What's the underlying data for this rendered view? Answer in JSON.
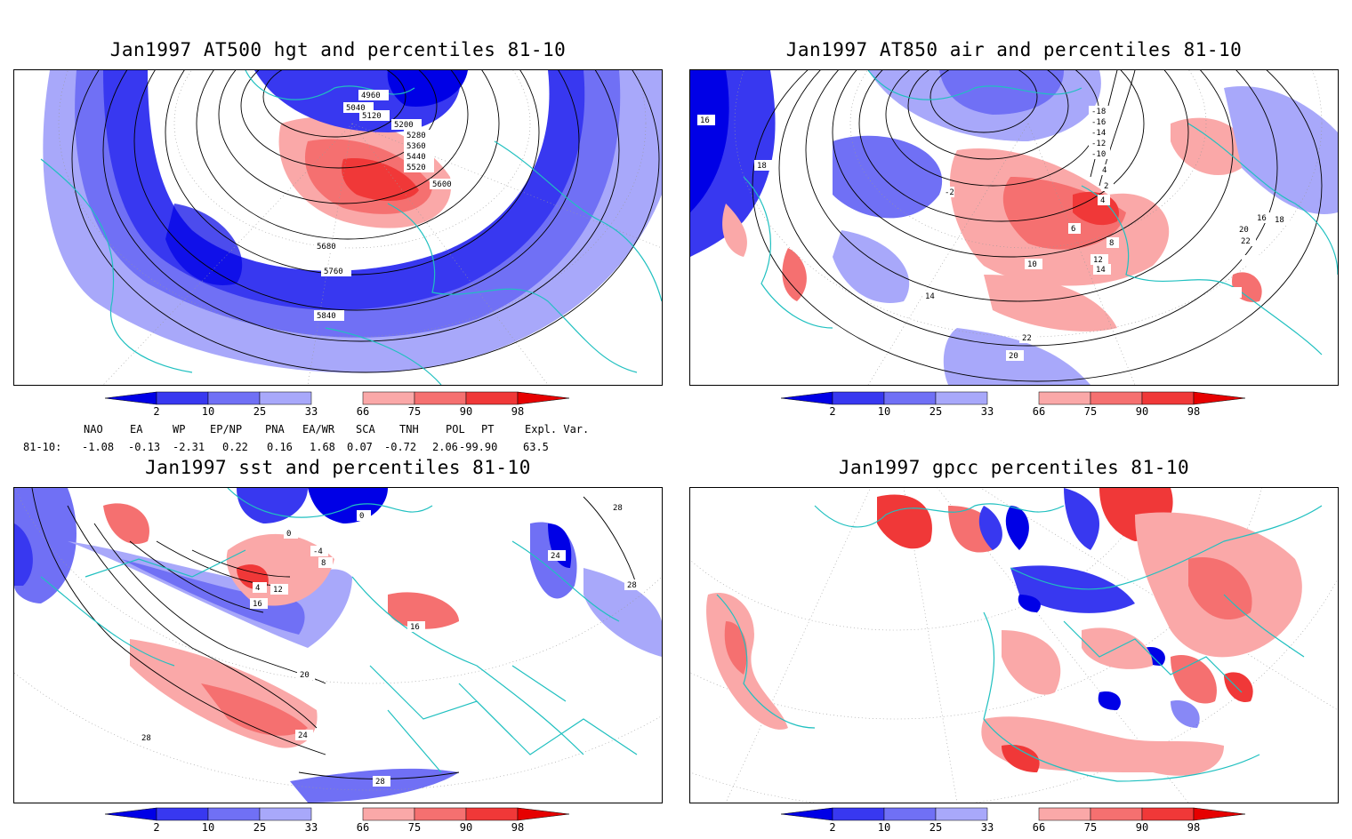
{
  "panels": [
    {
      "title": "Jan1997 AT500 hgt and percentiles 81-10",
      "contour_labels": [
        "4960",
        "5040",
        "5120",
        "5200",
        "5280",
        "5360",
        "5440",
        "5520",
        "5600",
        "5680",
        "5760",
        "5840"
      ]
    },
    {
      "title": "Jan1997 AT850 air and percentiles 81-10",
      "contour_labels": [
        "-18",
        "-16",
        "-14",
        "-12",
        "-10",
        "-2",
        "0",
        "2",
        "4",
        "6",
        "8",
        "10",
        "12",
        "14",
        "16",
        "18",
        "20",
        "22"
      ]
    },
    {
      "title": "Jan1997 sst and percentiles 81-10",
      "contour_labels": [
        "28",
        "24",
        "20",
        "16",
        "12",
        "8",
        "4",
        "0",
        "-4"
      ]
    },
    {
      "title": "Jan1997 gpcc percentiles 81-10",
      "contour_labels": []
    }
  ],
  "colorbar": {
    "labels": [
      "2",
      "10",
      "25",
      "33",
      "66",
      "75",
      "90",
      "98"
    ],
    "colors": {
      "below2": "#0000e6",
      "c2_10": "#3838f0",
      "c10_25": "#7070f5",
      "c25_33": "#a8a8fa",
      "c66_75": "#faa8a8",
      "c75_90": "#f57070",
      "c90_98": "#f03838",
      "above98": "#e60000"
    }
  },
  "indices": {
    "headers": [
      "NAO",
      "EA",
      "WP",
      "EP/NP",
      "PNA",
      "EA/WR",
      "SCA",
      "TNH",
      "POL",
      "PT",
      "Expl. Var."
    ],
    "row_label": "81-10:",
    "values": [
      "-1.08",
      "-0.13",
      "-2.31",
      "0.22",
      "0.16",
      "1.68",
      "0.07",
      "-0.72",
      "2.06",
      "-99.90",
      "63.5"
    ]
  },
  "style": {
    "coast_color": "#20c0c0",
    "contour_color": "#000000",
    "grid_color": "#999999"
  }
}
